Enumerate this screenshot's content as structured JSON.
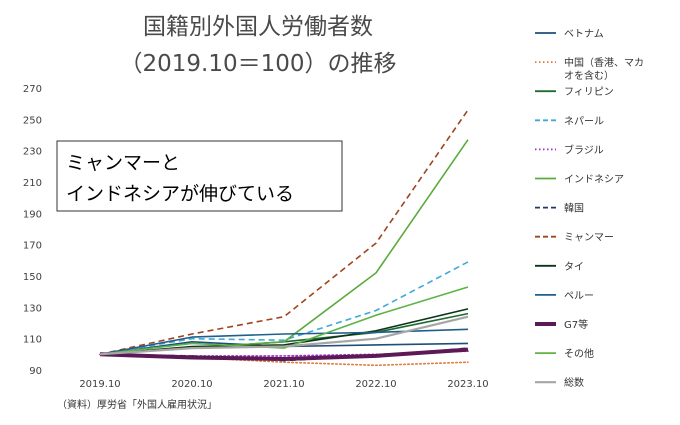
{
  "chart_data": {
    "type": "line",
    "title": [
      "国籍別外国人労働者数",
      "（2019.10＝100）の推移"
    ],
    "xlabel": "",
    "ylabel": "",
    "categories": [
      "2019.10",
      "2020.10",
      "2021.10",
      "2022.10",
      "2023.10"
    ],
    "ylim": [
      90,
      270
    ],
    "yticks": [
      90,
      110,
      130,
      150,
      170,
      190,
      210,
      230,
      250,
      270
    ],
    "grid": false,
    "legend_position": "right",
    "annotation": [
      "ミャンマーと",
      "インドネシアが伸びている"
    ],
    "source": "（資料）厚労省「外国人雇用状況」",
    "series": [
      {
        "name": "ベトナム",
        "color": "#1f4e79",
        "dash": "solid",
        "width": 1.6,
        "values": [
          100,
          108,
          105,
          106,
          107
        ]
      },
      {
        "name": "中国（香港、マカオを含む）",
        "color": "#e07b39",
        "dash": "dot",
        "width": 1.6,
        "values": [
          100,
          98,
          95,
          93,
          95
        ]
      },
      {
        "name": "フィリピン",
        "color": "#1e6b30",
        "dash": "solid",
        "width": 1.6,
        "values": [
          100,
          104,
          108,
          114,
          126
        ]
      },
      {
        "name": "ネパール",
        "color": "#3fa9d8",
        "dash": "dash",
        "width": 1.6,
        "values": [
          100,
          110,
          109,
          128,
          159
        ]
      },
      {
        "name": "ブラジル",
        "color": "#9932cc",
        "dash": "dot",
        "width": 1.6,
        "values": [
          100,
          99,
          99,
          100,
          102
        ]
      },
      {
        "name": "インドネシア",
        "color": "#5aaa3c",
        "dash": "solid",
        "width": 1.6,
        "values": [
          100,
          104,
          108,
          152,
          237
        ]
      },
      {
        "name": "韓国",
        "color": "#1f3864",
        "dash": "dash",
        "width": 1.6,
        "values": [
          100,
          99,
          96,
          99,
          104
        ]
      },
      {
        "name": "ミャンマー",
        "color": "#a0441e",
        "dash": "dash",
        "width": 1.6,
        "values": [
          100,
          113,
          124,
          171,
          256
        ]
      },
      {
        "name": "タイ",
        "color": "#0d3318",
        "dash": "solid",
        "width": 1.6,
        "values": [
          100,
          105,
          106,
          115,
          129
        ]
      },
      {
        "name": "ペルー",
        "color": "#1f5f8b",
        "dash": "solid",
        "width": 1.6,
        "values": [
          100,
          111,
          113,
          114,
          116
        ]
      },
      {
        "name": "G7等",
        "color": "#5b1a55",
        "dash": "solid",
        "width": 4,
        "values": [
          100,
          98,
          97,
          99,
          103
        ]
      },
      {
        "name": "その他",
        "color": "#5db343",
        "dash": "solid",
        "width": 1.6,
        "values": [
          100,
          107,
          104,
          125,
          143
        ]
      },
      {
        "name": "総数",
        "color": "#a6a6a6",
        "dash": "solid",
        "width": 2.2,
        "values": [
          100,
          104,
          105,
          110,
          124
        ]
      }
    ]
  }
}
